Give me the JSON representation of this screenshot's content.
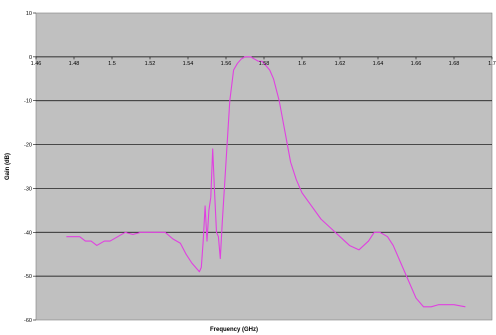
{
  "chart_data": {
    "type": "line",
    "title": "",
    "xlabel": "Frequency (GHz)",
    "ylabel": "Gain (dB)",
    "xlim": [
      1.46,
      1.7
    ],
    "ylim": [
      -60,
      10
    ],
    "x_ticks": [
      "1.46",
      "1.48",
      "1.5",
      "1.52",
      "1.54",
      "1.56",
      "1.58",
      "1.6",
      "1.62",
      "1.64",
      "1.66",
      "1.68",
      "1.7"
    ],
    "x_tick_values": [
      1.46,
      1.48,
      1.5,
      1.52,
      1.54,
      1.56,
      1.58,
      1.6,
      1.62,
      1.64,
      1.66,
      1.68,
      1.7
    ],
    "y_ticks": [
      "10",
      "0",
      "-10",
      "-20",
      "-30",
      "-40",
      "-50",
      "-60"
    ],
    "y_tick_values": [
      10,
      0,
      -10,
      -20,
      -30,
      -40,
      -50,
      -60
    ],
    "grid": "horizontal",
    "plot_background": "#c0c0c0",
    "line_color": "#e040e0",
    "series": [
      {
        "x": [
          1.476,
          1.483,
          1.486,
          1.489,
          1.492,
          1.496,
          1.499,
          1.503,
          1.507,
          1.511,
          1.515,
          1.519,
          1.523,
          1.528,
          1.532,
          1.536,
          1.539,
          1.542,
          1.544,
          1.546,
          1.547,
          1.548,
          1.549,
          1.55,
          1.551,
          1.552,
          1.553,
          1.554,
          1.555,
          1.556,
          1.557,
          1.558,
          1.559,
          1.56,
          1.561,
          1.562,
          1.564,
          1.566,
          1.568,
          1.57,
          1.573,
          1.575,
          1.577,
          1.579,
          1.581,
          1.583,
          1.585,
          1.588,
          1.591,
          1.594,
          1.597,
          1.6,
          1.605,
          1.61,
          1.615,
          1.62,
          1.625,
          1.63,
          1.635,
          1.638,
          1.641,
          1.645,
          1.648,
          1.652,
          1.656,
          1.66,
          1.664,
          1.668,
          1.672,
          1.676,
          1.68,
          1.686
        ],
        "y": [
          -41,
          -41,
          -42,
          -42,
          -43,
          -42,
          -42,
          -41,
          -40,
          -40.5,
          -40,
          -40,
          -40,
          -40,
          -41.5,
          -42.5,
          -45,
          -47,
          -48,
          -49,
          -48,
          -42,
          -34,
          -42,
          -35,
          -32,
          -21,
          -31,
          -40,
          -41,
          -46,
          -38,
          -31,
          -24,
          -17,
          -10,
          -3,
          -1.5,
          -0.5,
          0,
          0,
          -0.5,
          -1,
          -1,
          -2,
          -3,
          -5,
          -10,
          -17,
          -24,
          -28,
          -31,
          -34,
          -37,
          -39,
          -41,
          -43,
          -44,
          -42,
          -40,
          -40,
          -41,
          -43,
          -47,
          -51,
          -55,
          -57,
          -57,
          -56.5,
          -56.5,
          -56.5,
          -57
        ]
      }
    ]
  }
}
